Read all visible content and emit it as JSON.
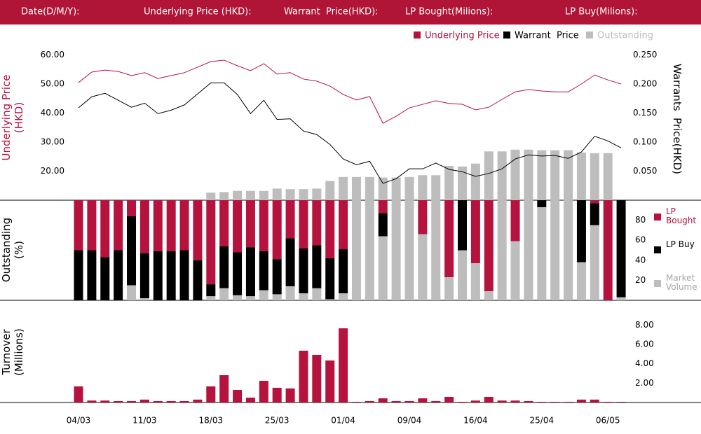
{
  "header": {
    "fields": [
      "Date(D/M/Y):",
      "Underlying Price (HKD):",
      "Warrant  Price(HKD):",
      "LP Bought(Milions):",
      "LP Buy(Milions):"
    ]
  },
  "chart_data": [
    {
      "type": "line",
      "ylabel": "Underlying Price (HKD)",
      "y2label": "Warrants  Price(HKD)",
      "ylim": [
        10,
        65
      ],
      "yticks": [
        {
          "value": 20,
          "label": "20.00"
        },
        {
          "value": 30,
          "label": "30.00"
        },
        {
          "value": 40,
          "label": "40.00"
        },
        {
          "value": 50,
          "label": "50.00"
        },
        {
          "value": 60,
          "label": "60.00"
        }
      ],
      "y2lim": [
        0,
        0.275
      ],
      "y2ticks": [
        {
          "value": 0.05,
          "label": "0.050"
        },
        {
          "value": 0.1,
          "label": "0.100"
        },
        {
          "value": 0.15,
          "label": "0.150"
        },
        {
          "value": 0.2,
          "label": "0.200"
        },
        {
          "value": 0.25,
          "label": "0.250"
        }
      ],
      "legend": "top-right",
      "series": [
        {
          "name": "Underlying Price",
          "color": "#b5123e",
          "values": [
            50.5,
            54.1,
            54.8,
            54.3,
            52.9,
            53.9,
            51.9,
            52.9,
            53.9,
            55.8,
            57.7,
            58.2,
            56.3,
            54.6,
            57.0,
            53.4,
            53.9,
            51.7,
            51.0,
            49.3,
            46.4,
            44.5,
            45.7,
            36.5,
            38.9,
            41.8,
            43.0,
            44.2,
            43.3,
            43.0,
            41.1,
            42.0,
            44.7,
            47.3,
            48.1,
            47.6,
            47.3,
            47.3,
            50.0,
            53.1,
            51.4,
            50.0
          ]
        },
        {
          "name": "Warrant  Price",
          "color": "#000000",
          "axis": "y2",
          "values": [
            0.159,
            0.178,
            0.184,
            0.172,
            0.16,
            0.167,
            0.149,
            0.155,
            0.164,
            0.183,
            0.202,
            0.202,
            0.182,
            0.149,
            0.172,
            0.139,
            0.14,
            0.119,
            0.113,
            0.096,
            0.071,
            0.061,
            0.067,
            0.029,
            0.037,
            0.054,
            0.054,
            0.064,
            0.053,
            0.049,
            0.041,
            0.046,
            0.054,
            0.071,
            0.078,
            0.076,
            0.077,
            0.072,
            0.083,
            0.11,
            0.102,
            0.09
          ]
        },
        {
          "name": "Outstanding",
          "color": "#bdbdbd",
          "axis": "y2",
          "type": "bar",
          "values": [
            0,
            0,
            0,
            0,
            0,
            0,
            0,
            0,
            0,
            0,
            0.013,
            0.014,
            0.016,
            0.016,
            0.016,
            0.02,
            0.019,
            0.019,
            0.02,
            0.033,
            0.04,
            0.04,
            0.04,
            0.039,
            0.039,
            0.04,
            0.043,
            0.043,
            0.059,
            0.058,
            0.063,
            0.084,
            0.084,
            0.087,
            0.087,
            0.086,
            0.086,
            0.086,
            0.082,
            0.081,
            0.081,
            0
          ]
        }
      ]
    },
    {
      "type": "bar",
      "stacked": true,
      "ylabel": "Outstanding (%)",
      "ylim": [
        0,
        100
      ],
      "yticks": [
        20,
        40,
        60,
        80
      ],
      "legend": "right",
      "series": [
        {
          "name": "LP Bought",
          "color": "#b5123e",
          "values": [
            50,
            50,
            57,
            50,
            16,
            53,
            51,
            51,
            50,
            60,
            84,
            46,
            52,
            47,
            51,
            59,
            38,
            48,
            45,
            58,
            49,
            0,
            0,
            13,
            0,
            0,
            34,
            0,
            77,
            0,
            63,
            91,
            0,
            41,
            0,
            0,
            0,
            0,
            0,
            3,
            100,
            0
          ]
        },
        {
          "name": "LP Buy",
          "color": "#000000",
          "values": [
            50,
            50,
            43,
            50,
            69,
            45,
            49,
            49,
            50,
            40,
            12,
            42,
            43,
            49,
            39,
            35,
            48,
            45,
            43,
            41,
            44,
            0,
            0,
            23,
            0,
            0,
            0,
            0,
            0,
            50,
            0,
            0,
            0,
            0,
            0,
            7,
            0,
            0,
            62,
            22,
            0,
            97
          ]
        },
        {
          "name": "Market Volume",
          "color": "#bdbdbd",
          "values": [
            0,
            0,
            0,
            0,
            15,
            2,
            0,
            0,
            0,
            0,
            4,
            12,
            5,
            4,
            10,
            6,
            14,
            7,
            12,
            1,
            7,
            100,
            100,
            64,
            100,
            100,
            66,
            100,
            23,
            50,
            37,
            9,
            100,
            59,
            100,
            93,
            100,
            100,
            38,
            75,
            0,
            3
          ]
        }
      ]
    },
    {
      "type": "bar",
      "ylabel": "Turnover (Millions)",
      "color": "#b5123e",
      "ylim": [
        0,
        9
      ],
      "yticks": [
        {
          "value": 2,
          "label": "2.00"
        },
        {
          "value": 4,
          "label": "4.00"
        },
        {
          "value": 6,
          "label": "6.00"
        },
        {
          "value": 8,
          "label": "8.00"
        }
      ],
      "categories": [
        "04/03",
        null,
        null,
        null,
        null,
        "11/03",
        null,
        null,
        null,
        null,
        "18/03",
        null,
        null,
        null,
        null,
        "25/03",
        null,
        null,
        null,
        null,
        "01/04",
        null,
        null,
        null,
        null,
        "09/04",
        null,
        null,
        null,
        null,
        "16/04",
        null,
        null,
        null,
        null,
        "25/04",
        null,
        null,
        null,
        null,
        "06/05",
        null
      ],
      "values": [
        1.66,
        0.2,
        0.2,
        0.15,
        0.15,
        0.3,
        0.15,
        0.15,
        0.15,
        0.3,
        1.66,
        2.82,
        1.3,
        0.5,
        2.24,
        1.52,
        1.45,
        5.35,
        4.92,
        4.34,
        7.66,
        0.07,
        0.15,
        0.43,
        0.15,
        0.15,
        0.43,
        0.15,
        0.58,
        0.07,
        0.2,
        0.58,
        0.2,
        0.2,
        0.15,
        0.07,
        0.07,
        0.07,
        0.3,
        0.3,
        0.07,
        0.07
      ]
    }
  ]
}
